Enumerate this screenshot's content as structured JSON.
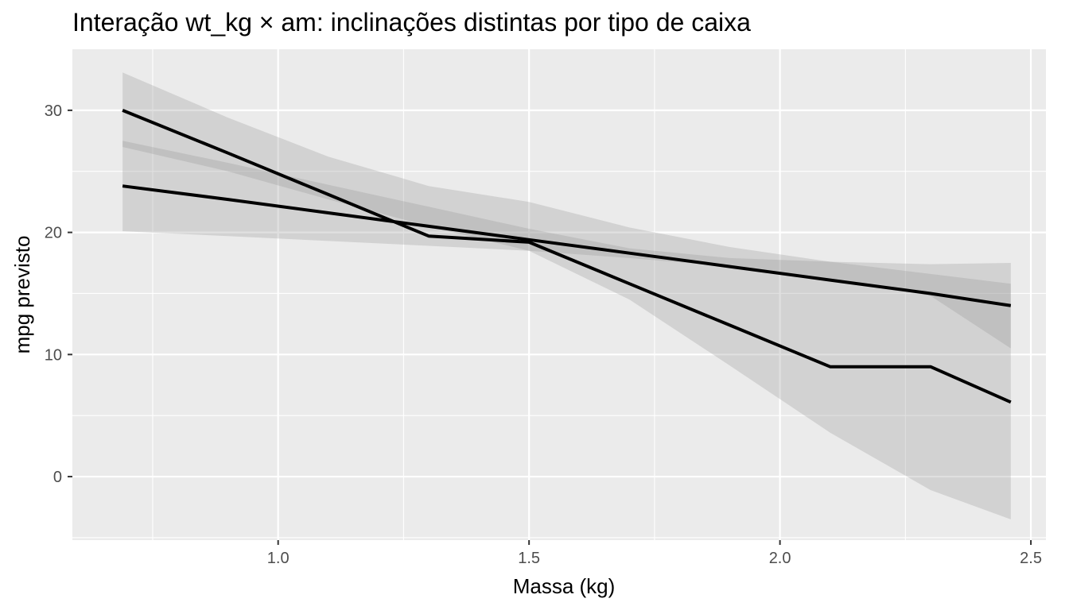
{
  "chart_data": {
    "type": "line",
    "title": "Interação wt_kg × am: inclinações distintas por tipo de caixa",
    "xlabel": "Massa (kg)",
    "ylabel": "mpg previsto",
    "xlim": [
      0.59,
      2.53
    ],
    "ylim": [
      -5.2,
      35.0
    ],
    "x_ticks": [
      1.0,
      1.5,
      2.0,
      2.5
    ],
    "x_tick_labels": [
      "1.0",
      "1.5",
      "2.0",
      "2.5"
    ],
    "y_ticks": [
      0,
      10,
      20,
      30
    ],
    "y_tick_labels": [
      "0",
      "10",
      "20",
      "30"
    ],
    "grid": true,
    "series": [
      {
        "x": [
          0.69,
          0.9,
          1.1,
          1.3,
          1.5,
          1.7,
          1.9,
          2.1,
          2.3,
          2.46
        ],
        "fit": [
          23.8,
          22.7,
          21.6,
          20.5,
          19.4,
          18.3,
          17.2,
          16.1,
          15.0,
          14.0
        ],
        "lower": [
          20.1,
          19.7,
          19.3,
          18.9,
          18.5,
          17.9,
          17.2,
          16.2,
          14.8,
          10.5
        ],
        "upper": [
          27.5,
          25.7,
          23.9,
          22.1,
          20.3,
          18.7,
          17.9,
          17.6,
          17.4,
          17.5
        ]
      },
      {
        "x": [
          0.69,
          0.9,
          1.1,
          1.3,
          1.5,
          1.7,
          1.9,
          2.1,
          2.3,
          2.46
        ],
        "fit": [
          30.0,
          26.5,
          23.1,
          19.7,
          19.2,
          15.8,
          12.4,
          9.0,
          9.0,
          6.1
        ],
        "lower": [
          27.0,
          25.0,
          22.7,
          20.5,
          18.5,
          14.5,
          9.1,
          3.6,
          -1.1,
          -3.5
        ],
        "upper": [
          33.1,
          29.4,
          26.2,
          23.8,
          22.5,
          20.4,
          18.8,
          17.6,
          16.6,
          15.8
        ]
      }
    ]
  }
}
